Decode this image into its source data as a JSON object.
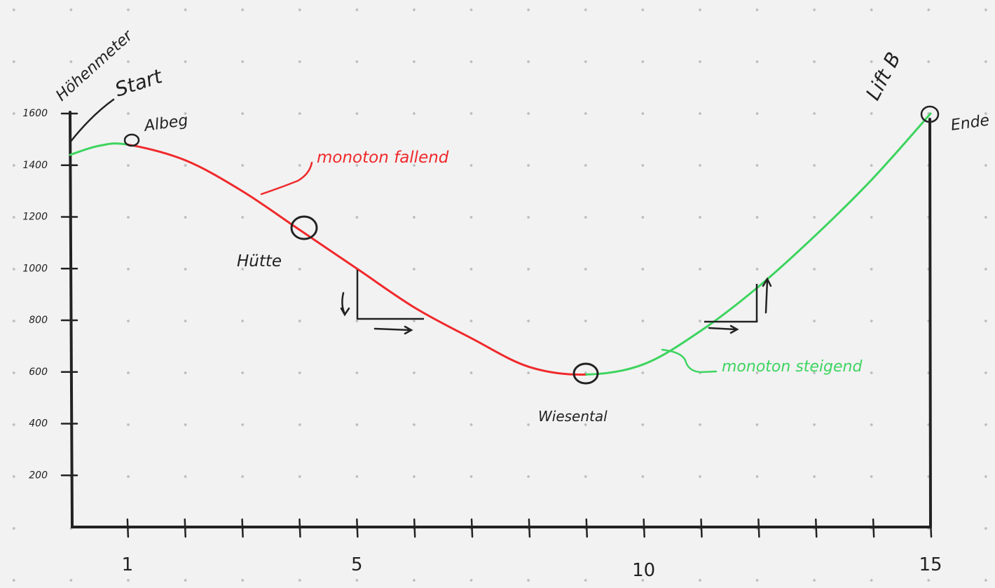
{
  "chart_data": {
    "type": "line",
    "y_axis_label": "Höhenmeter",
    "y_ticks": [
      "200",
      "400",
      "600",
      "800",
      "1000",
      "1200",
      "1400",
      "1600"
    ],
    "x_ticks": [
      "1",
      "5",
      "10",
      "15"
    ],
    "x_tick_count": 15,
    "colors": {
      "descending": "#f0292b",
      "ascending": "#3dd45f",
      "ink": "#222222"
    },
    "profile": {
      "x": [
        0,
        0.5,
        1,
        2,
        3,
        4,
        5,
        6,
        7,
        8,
        9,
        10,
        11,
        12,
        13,
        14,
        15
      ],
      "y": [
        1440,
        1475,
        1480,
        1420,
        1300,
        1150,
        1000,
        850,
        730,
        620,
        590,
        630,
        760,
        930,
        1130,
        1350,
        1600
      ]
    },
    "points": [
      {
        "name": "Albeg",
        "x": 1,
        "y": 1480
      },
      {
        "name": "Hütte",
        "x": 4,
        "y": 1150
      },
      {
        "name": "Wiesental",
        "x": 9,
        "y": 590
      },
      {
        "name": "Lift B",
        "x": 15,
        "y": 1600
      }
    ],
    "labels": {
      "start": "Start",
      "end": "Ende",
      "albeg": "Albeg",
      "huette": "Hütte",
      "wiesental": "Wiesental",
      "lift": "Lift B",
      "falling": "monoton fallend",
      "rising": "monoton steigend"
    }
  }
}
